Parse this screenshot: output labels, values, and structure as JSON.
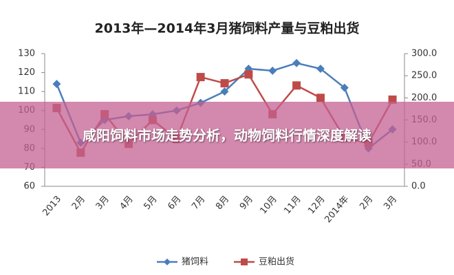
{
  "chart_data": {
    "type": "line",
    "title": "2013年—2014年3月猪饲料产量与豆粕出货",
    "categories": [
      "2013",
      "2月",
      "3月",
      "4月",
      "5月",
      "6月",
      "7月",
      "8月",
      "9月",
      "10月",
      "11月",
      "12月",
      "2014年",
      "2月",
      "3月"
    ],
    "series": [
      {
        "name": "猪饲料",
        "color": "#4a7ebb",
        "marker": "diamond",
        "values": [
          114,
          83,
          95,
          97,
          98,
          100,
          104,
          110,
          122,
          121,
          125,
          122,
          112,
          80,
          90
        ]
      },
      {
        "name": "豆粕出货",
        "color": "#be4b48",
        "marker": "square",
        "axis": "y2",
        "values": [
          177,
          76,
          163,
          96,
          150,
          107,
          247,
          233,
          253,
          163,
          228,
          200,
          109,
          98,
          196
        ]
      }
    ],
    "ylim": [
      60,
      130
    ],
    "yticks": [
      60,
      70,
      80,
      90,
      100,
      110,
      120,
      130
    ],
    "y2lim": [
      0,
      300
    ],
    "y2ticks": [
      {
        "value": 0,
        "label": "0.0"
      },
      {
        "value": 50,
        "label": "50.0"
      },
      {
        "value": 100,
        "label": "100.0"
      },
      {
        "value": 150,
        "label": "150.0"
      },
      {
        "value": 200,
        "label": "200.0"
      },
      {
        "value": 250,
        "label": "250.0"
      },
      {
        "value": 300,
        "label": "300.0"
      }
    ],
    "grid": false,
    "legend": "bottom"
  },
  "banner": {
    "text": "咸阳饲料市场走势分析，动物饲料行情深度解读"
  }
}
